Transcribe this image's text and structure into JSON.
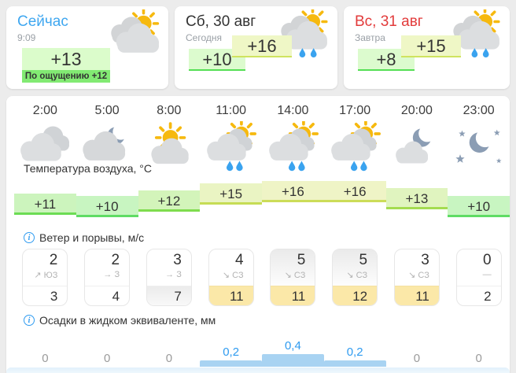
{
  "colors": {
    "link_blue": "#3fa7f0",
    "tomorrow_red": "#e23b3b",
    "now_temp_bg": "#dbfccb",
    "feels_bg": "#82ea73",
    "max_temp_bg": "#eff7c6",
    "min_temp_bg": "#dcfbce",
    "gust_yellow": "#fbe8a8",
    "precip_bar_blue": "#a8d3f2",
    "precip_text_blue": "#2f9bf0",
    "info_blue": "#2f9bf0"
  },
  "now_card": {
    "title": "Сейчас",
    "time": "9:09",
    "temp": "+13",
    "feels": "По ощущению +12",
    "icon": "sun-clouds"
  },
  "day_cards": [
    {
      "title": "Сб, 30 авг",
      "subtitle": "Сегодня",
      "min": "+10",
      "max": "+16",
      "icon": "sun-clouds-rain"
    },
    {
      "title": "Вс, 31 авг",
      "subtitle": "Завтра",
      "min": "+8",
      "max": "+15",
      "icon": "sun-clouds-rain"
    }
  ],
  "hours": [
    "2:00",
    "5:00",
    "8:00",
    "11:00",
    "14:00",
    "17:00",
    "20:00",
    "23:00"
  ],
  "weather_icons": [
    "cloudy",
    "cloud-moon",
    "sun-cloud",
    "sun-cloud-rain",
    "sun-cloud-rain",
    "sun-cloud-rain",
    "moon-cloud",
    "moon-stars"
  ],
  "section_labels": {
    "temperature": "Температура воздуха, °C",
    "wind": "Ветер и порывы, м/с",
    "precipitation": "Осадки в жидком эквиваленте, мм"
  },
  "info_icon_glyph": "i",
  "temperature": {
    "values": [
      "+11",
      "+10",
      "+12",
      "+15",
      "+16",
      "+16",
      "+13",
      "+10"
    ],
    "numbers": [
      11,
      10,
      12,
      15,
      16,
      16,
      13,
      10
    ],
    "fills": [
      "#ccf4bd",
      "#c8f5c1",
      "#d3f4ba",
      "#eaf4c3",
      "#eff4c6",
      "#eff4c6",
      "#e0f4bf",
      "#c8f5c1"
    ],
    "lines": [
      "#6cdc54",
      "#5fdc64",
      "#7fdc4e",
      "#c6dc55",
      "#ccdc59",
      "#ccdc59",
      "#a4dc50",
      "#5fdc64"
    ]
  },
  "wind": [
    {
      "speed": "2",
      "arrow": "↗",
      "dir": "ЮЗ",
      "gust": "3",
      "shade_top": false,
      "gust_shade": "none"
    },
    {
      "speed": "2",
      "arrow": "→",
      "dir": "З",
      "gust": "4",
      "shade_top": false,
      "gust_shade": "none"
    },
    {
      "speed": "3",
      "arrow": "→",
      "dir": "З",
      "gust": "7",
      "shade_top": false,
      "gust_shade": "gray"
    },
    {
      "speed": "4",
      "arrow": "↘",
      "dir": "СЗ",
      "gust": "11",
      "shade_top": false,
      "gust_shade": "yellow"
    },
    {
      "speed": "5",
      "arrow": "↘",
      "dir": "СЗ",
      "gust": "11",
      "shade_top": true,
      "gust_shade": "yellow"
    },
    {
      "speed": "5",
      "arrow": "↘",
      "dir": "СЗ",
      "gust": "12",
      "shade_top": true,
      "gust_shade": "yellow"
    },
    {
      "speed": "3",
      "arrow": "↘",
      "dir": "СЗ",
      "gust": "11",
      "shade_top": false,
      "gust_shade": "yellow"
    },
    {
      "speed": "0",
      "arrow": "—",
      "dir": "",
      "gust": "2",
      "shade_top": false,
      "gust_shade": "none"
    }
  ],
  "precipitation": {
    "values": [
      "0",
      "0",
      "0",
      "0,2",
      "0,4",
      "0,2",
      "0",
      "0"
    ],
    "numbers": [
      0,
      0,
      0,
      0.2,
      0.4,
      0.2,
      0,
      0
    ]
  }
}
